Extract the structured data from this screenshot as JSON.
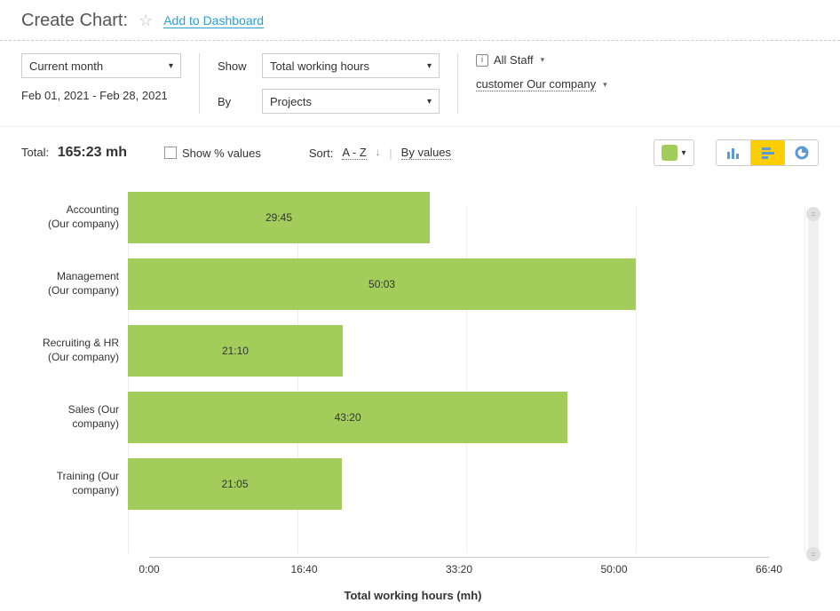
{
  "header": {
    "title": "Create Chart:",
    "add_dashboard": "Add to Dashboard"
  },
  "controls": {
    "period_label": "Current month",
    "date_range": "Feb 01, 2021  -  Feb 28, 2021",
    "show_label": "Show",
    "show_value": "Total working hours",
    "by_label": "By",
    "by_value": "Projects",
    "staff_value": "All Staff",
    "customer_value": "customer Our company"
  },
  "toolbar": {
    "total_label": "Total:",
    "total_value": "165:23 mh",
    "show_percent": "Show % values",
    "sort_label": "Sort:",
    "sort_az": "A - Z",
    "sort_values": "By values"
  },
  "chart": {
    "type": "horizontal-bar",
    "bar_color": "#a2cd5a",
    "bg_color": "#ffffff",
    "grid_color": "#eeeeee",
    "x_title": "Total working hours (mh)",
    "x_max_minutes": 4000,
    "x_ticks": [
      "0:00",
      "16:40",
      "33:20",
      "50:00",
      "66:40"
    ],
    "x_tick_positions": [
      0,
      25,
      50,
      75,
      100
    ],
    "label_fontsize": 12,
    "title_fontsize": 13,
    "bars": [
      {
        "label_line1": "Accounting",
        "label_line2": "(Our company)",
        "value_label": "29:45",
        "minutes": 1785
      },
      {
        "label_line1": "Management",
        "label_line2": "(Our company)",
        "value_label": "50:03",
        "minutes": 3003
      },
      {
        "label_line1": "Recruiting & HR",
        "label_line2": "(Our company)",
        "value_label": "21:10",
        "minutes": 1270
      },
      {
        "label_line1": "Sales (Our",
        "label_line2": "company)",
        "value_label": "43:20",
        "minutes": 2600
      },
      {
        "label_line1": "Training (Our",
        "label_line2": "company)",
        "value_label": "21:05",
        "minutes": 1265
      }
    ]
  }
}
